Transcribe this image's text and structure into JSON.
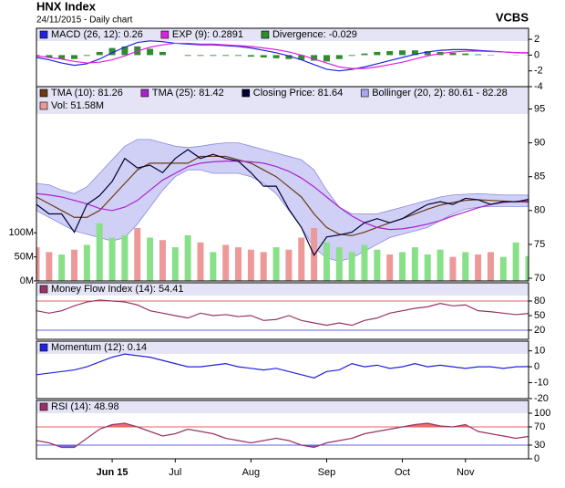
{
  "header": {
    "title": "HNX Index",
    "subtitle": "24/11/2015 - Daily chart",
    "brand": "VCBS"
  },
  "chart_data": [
    {
      "type": "line",
      "ylim": [
        -4,
        3.4
      ],
      "yticks": [
        2,
        0,
        -2,
        -4
      ],
      "series": [
        {
          "name": "MACD (26, 12): 0.26",
          "color": "#2222dd",
          "values": [
            -0.3,
            -0.6,
            -1.0,
            -1.3,
            -1.1,
            -0.5,
            0.3,
            1.0,
            1.6,
            1.8,
            1.7,
            1.5,
            1.4,
            1.3,
            1.3,
            1.2,
            1.1,
            0.9,
            0.6,
            0.3,
            -0.1,
            -0.6,
            -1.2,
            -1.8,
            -2.0,
            -1.8,
            -1.5,
            -1.1,
            -0.7,
            -0.3,
            0.1,
            0.4,
            0.6,
            0.7,
            0.7,
            0.6,
            0.5,
            0.4,
            0.3,
            0.26
          ]
        },
        {
          "name": "EXP (9): 0.2891",
          "color": "#dd22dd",
          "values": [
            -0.1,
            -0.3,
            -0.5,
            -0.8,
            -1.0,
            -0.9,
            -0.6,
            -0.1,
            0.5,
            1.0,
            1.3,
            1.5,
            1.5,
            1.4,
            1.4,
            1.3,
            1.2,
            1.1,
            0.9,
            0.7,
            0.4,
            0.0,
            -0.5,
            -1.0,
            -1.5,
            -1.7,
            -1.7,
            -1.5,
            -1.2,
            -0.9,
            -0.5,
            -0.1,
            0.2,
            0.4,
            0.5,
            0.5,
            0.45,
            0.4,
            0.33,
            0.2891
          ]
        },
        {
          "name": "Divergence: -0.029",
          "color": "#2e8b2e",
          "type": "bar",
          "values": [
            -0.2,
            -0.3,
            -0.5,
            -0.5,
            -0.1,
            0.4,
            0.9,
            1.1,
            1.1,
            0.8,
            0.4,
            0,
            -0.1,
            -0.1,
            -0.1,
            -0.1,
            -0.1,
            -0.2,
            -0.3,
            -0.4,
            -0.5,
            -0.6,
            -0.7,
            -0.8,
            -0.5,
            -0.1,
            0.2,
            0.4,
            0.5,
            0.6,
            0.6,
            0.5,
            0.4,
            0.3,
            0.2,
            0.1,
            0.05,
            0,
            -0.03,
            -0.029
          ]
        }
      ]
    },
    {
      "type": "line",
      "ylim": [
        69.6,
        98.3
      ],
      "yticks": [
        95,
        90,
        85,
        80,
        75,
        70
      ],
      "y2lim": [
        0,
        404
      ],
      "y2ticks": [
        {
          "value": 100,
          "label": "100M"
        },
        {
          "value": 50,
          "label": "50M"
        },
        {
          "value": 0,
          "label": "0M"
        }
      ],
      "series": [
        {
          "name": "TMA (10): 81.26",
          "color": "#6b3a12",
          "values": [
            82,
            81,
            80,
            79,
            79,
            80,
            82,
            84,
            86,
            87,
            87,
            87,
            87,
            88,
            88,
            88,
            87.5,
            87,
            86,
            85,
            83.5,
            82,
            79.5,
            77.5,
            76.5,
            76.3,
            76.8,
            77.5,
            78.2,
            78.8,
            79.5,
            80.2,
            80.8,
            81.2,
            81.5,
            81.6,
            81.5,
            81.4,
            81.3,
            81.26
          ]
        },
        {
          "name": "TMA (25): 81.42",
          "color": "#aa22cc",
          "values": [
            82.5,
            82.3,
            82,
            81.5,
            81,
            80.3,
            80,
            80.5,
            81.5,
            83,
            84.5,
            85.5,
            86.5,
            87,
            87.2,
            87.3,
            87.3,
            87.2,
            87,
            86.5,
            85.8,
            84.8,
            83.5,
            82,
            80.5,
            79.2,
            78.2,
            77.5,
            77.2,
            77.3,
            77.6,
            78,
            78.5,
            79.2,
            79.8,
            80.4,
            80.9,
            81.2,
            81.35,
            81.42
          ]
        },
        {
          "name": "Closing Price: 81.64",
          "color": "#000033",
          "values": [
            80.9,
            79.5,
            79.5,
            76.8,
            80.9,
            82.2,
            84.3,
            87.7,
            86.3,
            86.7,
            85.6,
            87.7,
            89.0,
            87.7,
            88.3,
            87.7,
            87.3,
            85.6,
            83.6,
            83.6,
            80.2,
            77.5,
            73.4,
            76.1,
            76.4,
            76.8,
            78.2,
            78.8,
            78.2,
            78.8,
            79.9,
            80.9,
            81.3,
            80.9,
            81.8,
            81.6,
            80.9,
            81.3,
            81.3,
            81.64
          ]
        },
        {
          "name": "Bollinger (20, 2): 80.61 - 82.28",
          "color": "#a9a9ee",
          "type": "band",
          "upper": [
            84,
            83.8,
            83,
            82.5,
            83.5,
            85.5,
            87.5,
            89.5,
            90.5,
            90.5,
            90,
            89.5,
            89.3,
            89.5,
            89.8,
            90,
            90,
            89.5,
            89,
            88.5,
            88,
            87.5,
            86,
            83,
            80.5,
            79.5,
            79.5,
            79.5,
            80,
            80.5,
            81,
            81.5,
            82,
            82.3,
            82.4,
            82.5,
            82.4,
            82.3,
            82.3,
            82.28
          ],
          "lower": [
            80,
            79,
            78,
            77,
            76.5,
            76,
            75.5,
            76,
            78,
            80.5,
            83,
            85,
            86,
            86,
            85.5,
            85.5,
            85.5,
            85,
            84,
            82.5,
            80,
            77.5,
            74.5,
            73,
            72.5,
            73,
            74,
            75,
            76,
            76.5,
            77,
            77.5,
            78.5,
            79.5,
            80.2,
            80.5,
            80.6,
            80.6,
            80.6,
            80.61
          ]
        },
        {
          "name": "Vol: 51.58M",
          "color": "#ee9999",
          "up_color": "#88e088",
          "type": "bar",
          "axis": "y2",
          "values": [
            70,
            60,
            55,
            65,
            75,
            120,
            90,
            95,
            110,
            90,
            85,
            70,
            95,
            80,
            60,
            75,
            70,
            65,
            60,
            70,
            65,
            90,
            110,
            80,
            70,
            60,
            75,
            65,
            55,
            60,
            70,
            55,
            65,
            50,
            60,
            55,
            60,
            50,
            80,
            51.58
          ]
        }
      ]
    },
    {
      "type": "line",
      "ylim": [
        1.2,
        117.5
      ],
      "yticks": [
        80,
        50,
        20
      ],
      "overbought": 80,
      "oversold": 20,
      "series": [
        {
          "name": "Money Flow Index (14): 54.41",
          "color": "#993366",
          "values": [
            60,
            55,
            60,
            70,
            78,
            82,
            80,
            78,
            72,
            60,
            55,
            50,
            45,
            55,
            50,
            52,
            48,
            50,
            40,
            42,
            50,
            40,
            35,
            30,
            35,
            30,
            40,
            45,
            55,
            60,
            65,
            68,
            75,
            70,
            72,
            60,
            58,
            55,
            52,
            54.41
          ]
        }
      ]
    },
    {
      "type": "line",
      "ylim": [
        -20,
        16.1
      ],
      "yticks": [
        10,
        0,
        -10,
        -20
      ],
      "series": [
        {
          "name": "Momentum (12): 0.14",
          "color": "#2222dd",
          "values": [
            -5,
            -4,
            -3,
            -2,
            0,
            3,
            6,
            8,
            7,
            6,
            4,
            2,
            0,
            0,
            1,
            2,
            0,
            -1,
            -2,
            -1,
            -3,
            -5,
            -7,
            -3,
            -2,
            2,
            0,
            1,
            -1,
            0,
            2,
            0,
            1,
            0,
            -1,
            0,
            0,
            -1,
            0,
            0.14
          ]
        }
      ]
    },
    {
      "type": "line",
      "ylim": [
        0,
        128
      ],
      "yticks": [
        100,
        70,
        30,
        0
      ],
      "overbought": 70,
      "oversold": 30,
      "categories": [
        null,
        null,
        null,
        null,
        null,
        null,
        "Jun 15",
        null,
        null,
        null,
        null,
        "Jul",
        null,
        null,
        null,
        null,
        null,
        "Aug",
        null,
        null,
        null,
        null,
        null,
        "Sep",
        null,
        null,
        null,
        null,
        null,
        "Oct",
        null,
        null,
        null,
        null,
        "Nov",
        null,
        null,
        null,
        null,
        null
      ],
      "series": [
        {
          "name": "RSI (14): 48.98",
          "color": "#993366",
          "values": [
            40,
            35,
            25,
            25,
            45,
            65,
            75,
            78,
            70,
            60,
            50,
            55,
            65,
            60,
            55,
            45,
            40,
            35,
            40,
            45,
            40,
            30,
            25,
            35,
            40,
            45,
            55,
            60,
            65,
            70,
            75,
            78,
            72,
            70,
            75,
            60,
            55,
            50,
            45,
            48.98
          ]
        }
      ]
    }
  ]
}
